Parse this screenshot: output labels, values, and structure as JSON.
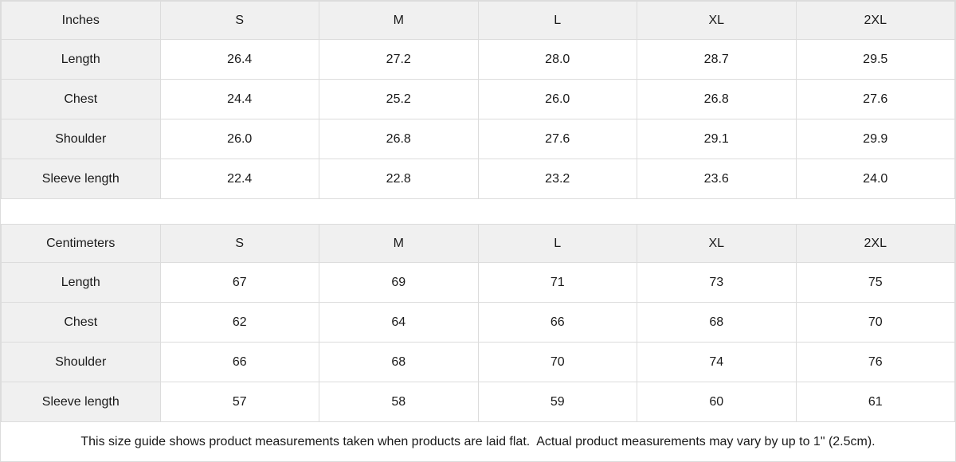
{
  "tables": [
    {
      "unit_label": "Inches",
      "sizes": [
        "S",
        "M",
        "L",
        "XL",
        "2XL"
      ],
      "rows": [
        {
          "label": "Length",
          "values": [
            "26.4",
            "27.2",
            "28.0",
            "28.7",
            "29.5"
          ]
        },
        {
          "label": "Chest",
          "values": [
            "24.4",
            "25.2",
            "26.0",
            "26.8",
            "27.6"
          ]
        },
        {
          "label": "Shoulder",
          "values": [
            "26.0",
            "26.8",
            "27.6",
            "29.1",
            "29.9"
          ]
        },
        {
          "label": "Sleeve length",
          "values": [
            "22.4",
            "22.8",
            "23.2",
            "23.6",
            "24.0"
          ]
        }
      ]
    },
    {
      "unit_label": "Centimeters",
      "sizes": [
        "S",
        "M",
        "L",
        "XL",
        "2XL"
      ],
      "rows": [
        {
          "label": "Length",
          "values": [
            "67",
            "69",
            "71",
            "73",
            "75"
          ]
        },
        {
          "label": "Chest",
          "values": [
            "62",
            "64",
            "66",
            "68",
            "70"
          ]
        },
        {
          "label": "Shoulder",
          "values": [
            "66",
            "68",
            "70",
            "74",
            "76"
          ]
        },
        {
          "label": "Sleeve length",
          "values": [
            "57",
            "58",
            "59",
            "60",
            "61"
          ]
        }
      ]
    }
  ],
  "footer": {
    "note": "This size guide shows product measurements taken when products are laid flat.  Actual product measurements may vary by up to 1\" (2.5cm)."
  },
  "colors": {
    "header_bg": "#f0f0f0",
    "border": "#dcdcdc",
    "text": "#1a1a1a",
    "cell_bg": "#ffffff"
  },
  "chart_data": [
    {
      "type": "table",
      "title": "Inches",
      "columns": [
        "Inches",
        "S",
        "M",
        "L",
        "XL",
        "2XL"
      ],
      "rows": [
        [
          "Length",
          26.4,
          27.2,
          28.0,
          28.7,
          29.5
        ],
        [
          "Chest",
          24.4,
          25.2,
          26.0,
          26.8,
          27.6
        ],
        [
          "Shoulder",
          26.0,
          26.8,
          27.6,
          29.1,
          29.9
        ],
        [
          "Sleeve length",
          22.4,
          22.8,
          23.2,
          23.6,
          24.0
        ]
      ]
    },
    {
      "type": "table",
      "title": "Centimeters",
      "columns": [
        "Centimeters",
        "S",
        "M",
        "L",
        "XL",
        "2XL"
      ],
      "rows": [
        [
          "Length",
          67,
          69,
          71,
          73,
          75
        ],
        [
          "Chest",
          62,
          64,
          66,
          68,
          70
        ],
        [
          "Shoulder",
          66,
          68,
          70,
          74,
          76
        ],
        [
          "Sleeve length",
          57,
          58,
          59,
          60,
          61
        ]
      ]
    }
  ]
}
